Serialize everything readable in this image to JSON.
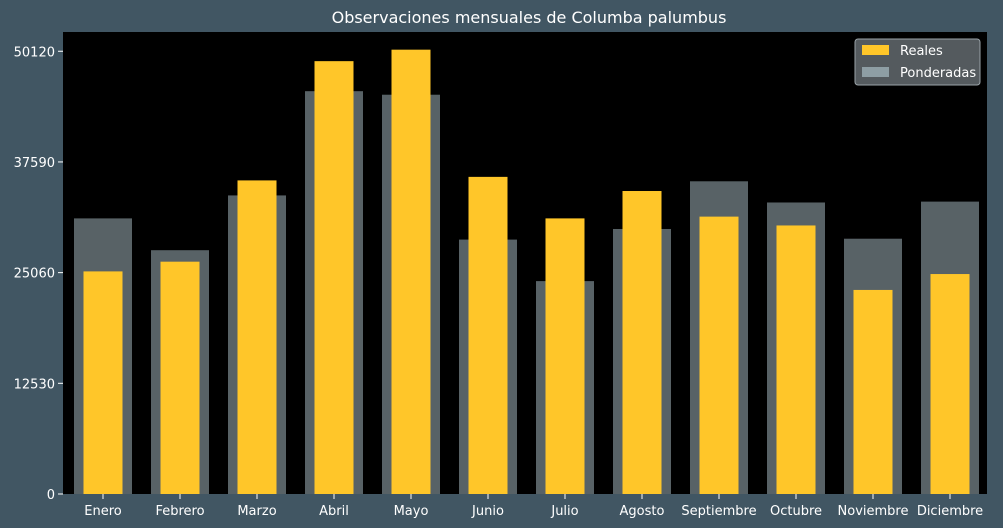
{
  "chart_data": {
    "type": "bar",
    "title": "Observaciones mensuales de Columba palumbus",
    "categories": [
      "Enero",
      "Febrero",
      "Marzo",
      "Abril",
      "Mayo",
      "Junio",
      "Julio",
      "Agosto",
      "Septiembre",
      "Octubre",
      "Noviembre",
      "Diciembre"
    ],
    "series": [
      {
        "name": "Reales",
        "color": "#ffc629",
        "values": [
          25200,
          26300,
          35500,
          49000,
          50300,
          35900,
          31200,
          34300,
          31400,
          30400,
          23100,
          24900
        ]
      },
      {
        "name": "Ponderadas",
        "color": "#8e9ea4",
        "values": [
          31200,
          27600,
          33800,
          45600,
          45200,
          28800,
          24100,
          30000,
          35400,
          33000,
          28900,
          33100
        ]
      }
    ],
    "yticks": [
      0,
      12530,
      25060,
      37590,
      50120
    ],
    "ylim": [
      0,
      52300
    ],
    "xlabel": "",
    "ylabel": "",
    "legend_position": "top-right",
    "grid": false,
    "plot_background": "#000000",
    "page_background": "#415663"
  }
}
